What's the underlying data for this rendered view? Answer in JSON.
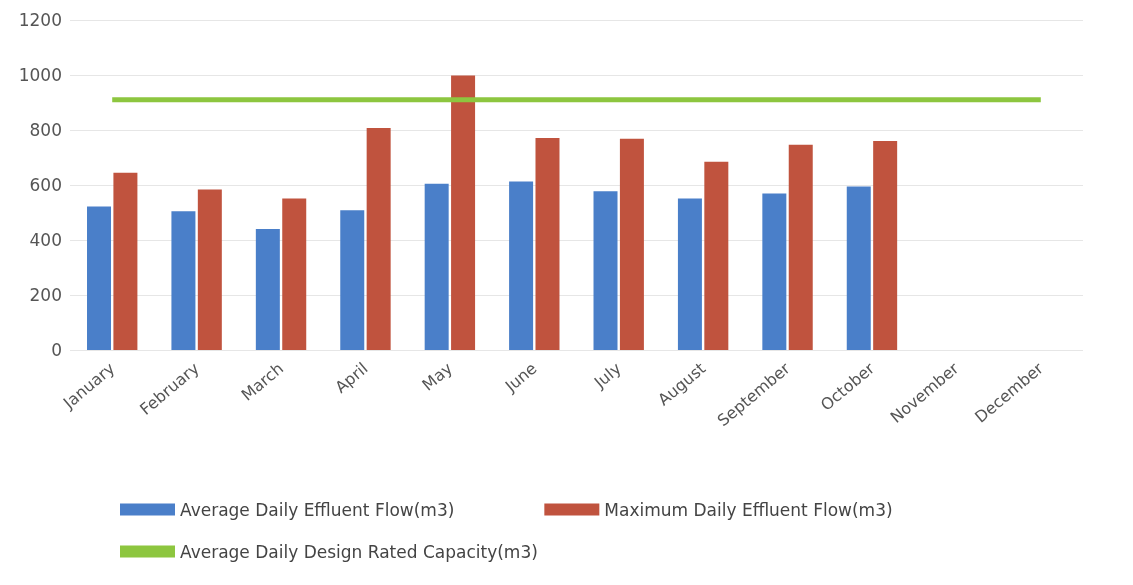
{
  "chart_data": {
    "type": "bar",
    "categories": [
      "January",
      "February",
      "March",
      "April",
      "May",
      "June",
      "July",
      "August",
      "September",
      "October",
      "November",
      "December"
    ],
    "series": [
      {
        "name": "Average Daily Effluent Flow(m3)",
        "color": "#4a7fc9",
        "values": [
          522,
          505,
          440,
          508,
          605,
          613,
          577,
          551,
          569,
          595,
          null,
          null
        ]
      },
      {
        "name": "Maximum Daily Effluent Flow(m3)",
        "color": "#c0533e",
        "values": [
          645,
          584,
          551,
          807,
          998,
          771,
          768,
          685,
          746,
          760,
          null,
          null
        ]
      },
      {
        "name": "Average Daily Design Rated Capacity(m3)",
        "type": "line",
        "color": "#8dc63f",
        "marker": "none",
        "values": [
          910,
          910,
          910,
          910,
          910,
          910,
          910,
          910,
          910,
          910,
          910,
          910
        ]
      }
    ],
    "ylim": [
      0,
      1200
    ],
    "yticks": [
      0,
      200,
      400,
      600,
      800,
      1000,
      1200
    ],
    "grid": "y",
    "legend": "bottom"
  }
}
